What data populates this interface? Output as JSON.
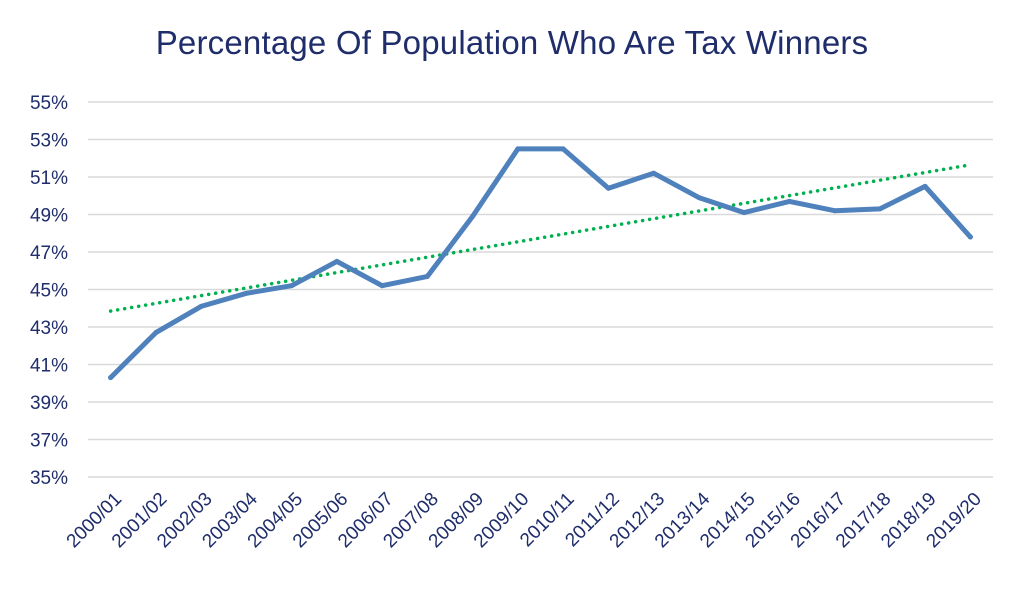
{
  "chart_data": {
    "type": "line",
    "title": "Percentage Of Population Who Are Tax Winners",
    "xlabel": "",
    "ylabel": "",
    "categories": [
      "2000/01",
      "2001/02",
      "2002/03",
      "2003/04",
      "2004/05",
      "2005/06",
      "2006/07",
      "2007/08",
      "2008/09",
      "2009/10",
      "2010/11",
      "2011/12",
      "2012/13",
      "2013/14",
      "2014/15",
      "2015/16",
      "2016/17",
      "2017/18",
      "2018/19",
      "2019/20"
    ],
    "series": [
      {
        "values": [
          40.3,
          42.7,
          44.1,
          44.8,
          45.2,
          46.5,
          45.2,
          45.7,
          48.9,
          52.5,
          52.5,
          50.4,
          51.2,
          49.9,
          49.1,
          49.7,
          49.2,
          49.3,
          50.5,
          47.8
        ]
      }
    ],
    "trendline": {
      "type": "linear",
      "style": "dotted",
      "start": 43.85,
      "end": 51.65
    },
    "ylim": [
      35,
      55
    ],
    "yticks": [
      "35%",
      "37%",
      "39%",
      "41%",
      "43%",
      "45%",
      "47%",
      "49%",
      "51%",
      "53%",
      "55%"
    ],
    "grid": true,
    "legend": "none",
    "colors": {
      "line": "#4F81BD",
      "trend": "#00B050",
      "grid": "#D9D9D9",
      "text": "#1F2D6B"
    }
  }
}
